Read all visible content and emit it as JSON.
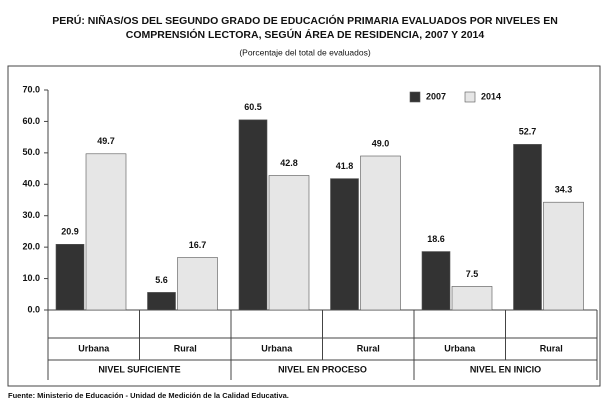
{
  "chart_data": {
    "type": "bar",
    "title": [
      "PERÚ: NIÑAS/OS DEL SEGUNDO GRADO DE EDUCACIÓN PRIMARIA EVALUADOS POR NIVELES EN",
      "COMPRENSIÓN LECTORA, SEGÚN ÁREA DE RESIDENCIA, 2007 Y 2014"
    ],
    "subtitle": "(Porcentaje del total de evaluados)",
    "source": "Fuente: Ministerio de Educación - Unidad de Medición de la Calidad Educativa.",
    "categories": [
      "Urbana",
      "Rural",
      "Urbana",
      "Rural",
      "Urbana",
      "Rural"
    ],
    "groups": [
      "NIVEL SUFICIENTE",
      "NIVEL EN PROCESO",
      "NIVEL EN INICIO"
    ],
    "series": [
      {
        "name": "2007",
        "color": "#333333",
        "values": [
          20.9,
          5.6,
          60.5,
          41.8,
          18.6,
          52.7
        ],
        "value_labels": [
          "20.9",
          "5.6",
          "60.5",
          "41.8",
          "18.6",
          "52.7"
        ]
      },
      {
        "name": "2014",
        "color": "#e6e6e6",
        "values": [
          49.7,
          16.7,
          42.8,
          49,
          7.5,
          34.3
        ],
        "value_labels": [
          "49.7",
          "16.7",
          "42.8",
          "49.0",
          "7.5",
          "34.3"
        ]
      }
    ],
    "ylim": [
      0,
      70
    ],
    "yticks": [
      {
        "value": 0,
        "label": "0.0"
      },
      {
        "value": 10,
        "label": "10.0"
      },
      {
        "value": 20,
        "label": "20.0"
      },
      {
        "value": 30,
        "label": "30.0"
      },
      {
        "value": 40,
        "label": "40.0"
      },
      {
        "value": 50,
        "label": "50.0"
      },
      {
        "value": 60,
        "label": "60.0"
      },
      {
        "value": 70,
        "label": "70.0"
      }
    ],
    "legend": "top-right"
  }
}
